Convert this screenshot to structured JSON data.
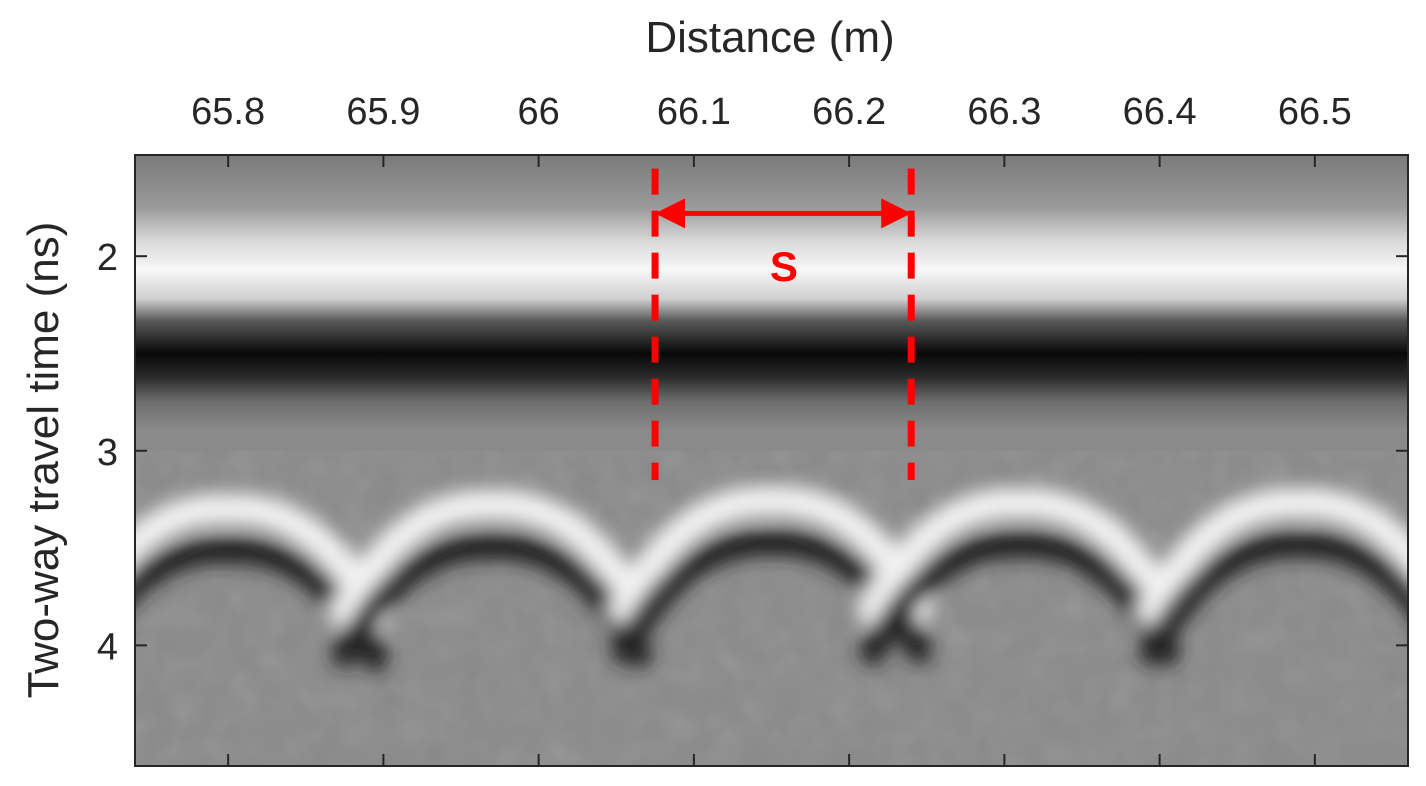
{
  "chart_data": {
    "type": "heatmap",
    "title": "",
    "xlabel": "Distance (m)",
    "ylabel": "Two-way travel time (ns)",
    "xlim": [
      65.74,
      66.56
    ],
    "ylim": [
      1.48,
      4.62
    ],
    "y_reversed": true,
    "x_axis_position": "top",
    "grid": false,
    "colormap": "gray",
    "x_ticks": [
      65.8,
      65.9,
      66.0,
      66.1,
      66.2,
      66.3,
      66.4,
      66.5
    ],
    "x_tick_labels": [
      "65.8",
      "65.9",
      "66",
      "66.1",
      "66.2",
      "66.3",
      "66.4",
      "66.5"
    ],
    "y_ticks": [
      2,
      3,
      4
    ],
    "y_tick_labels": [
      "2",
      "3",
      "4"
    ],
    "horizontal_bands": [
      {
        "y": 2.07,
        "polarity": "bright"
      },
      {
        "y": 2.5,
        "polarity": "dark"
      }
    ],
    "hyperbolas": [
      {
        "apex_x": 65.8,
        "apex_y": 3.3
      },
      {
        "apex_x": 65.97,
        "apex_y": 3.28
      },
      {
        "apex_x": 66.15,
        "apex_y": 3.26
      },
      {
        "apex_x": 66.31,
        "apex_y": 3.27
      },
      {
        "apex_x": 66.49,
        "apex_y": 3.27
      }
    ],
    "annotations": {
      "color": "#ff0000",
      "dashed_lines_x": [
        66.075,
        66.24
      ],
      "dashed_lines_y_range": [
        1.55,
        3.15
      ],
      "arrow": {
        "x_start": 66.075,
        "x_end": 66.24,
        "y": 1.78
      },
      "label": {
        "text": "S",
        "x": 66.158,
        "y": 2.05
      }
    }
  }
}
